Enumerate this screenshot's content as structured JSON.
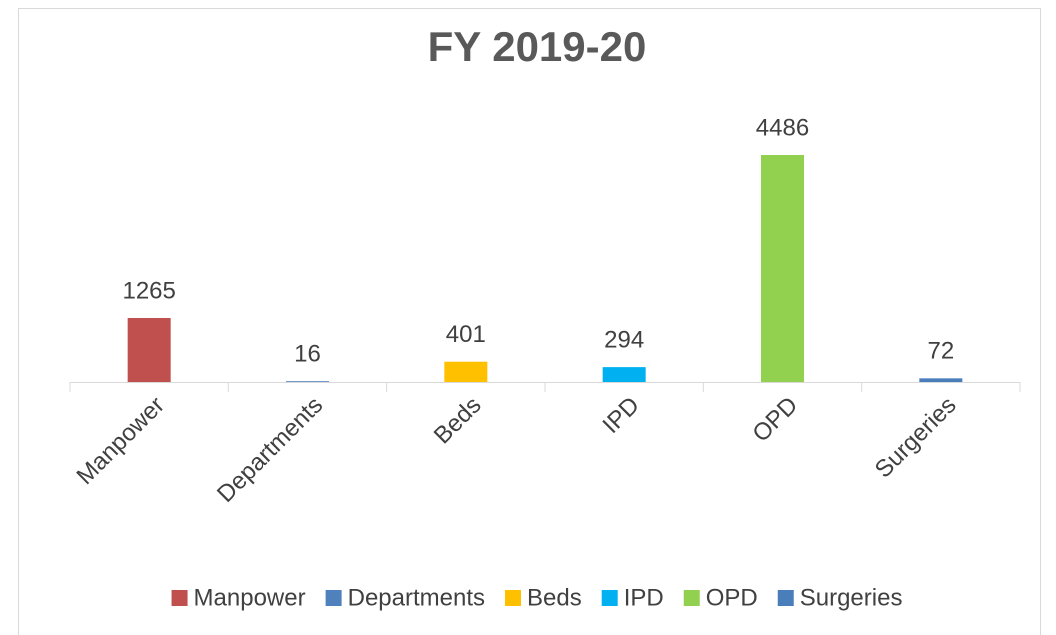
{
  "chart_data": {
    "type": "bar",
    "title": "FY 2019-20",
    "categories": [
      "Manpower",
      "Departments",
      "Beds",
      "IPD",
      "OPD",
      "Surgeries"
    ],
    "values": [
      1265,
      16,
      401,
      294,
      4486,
      72
    ],
    "colors": [
      "#c0504d",
      "#4f81bd",
      "#ffc000",
      "#00b0f0",
      "#92d050",
      "#4a7ebb"
    ],
    "legend": "bottom"
  }
}
